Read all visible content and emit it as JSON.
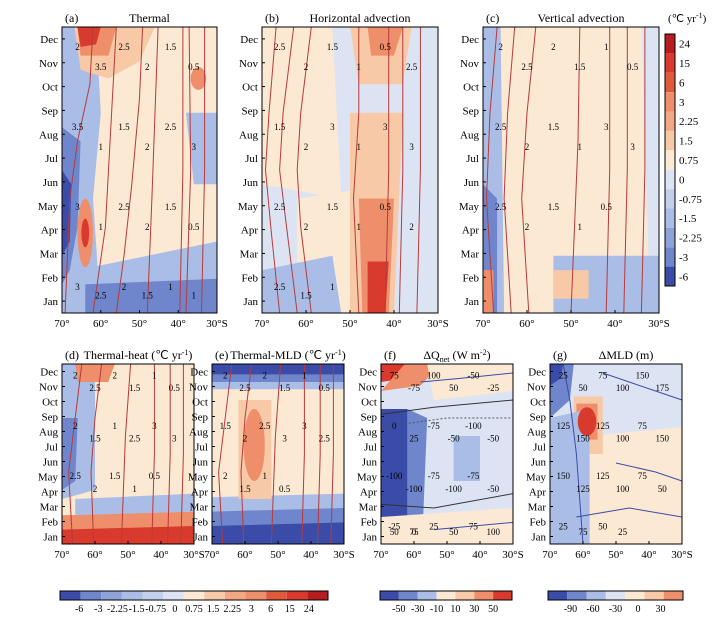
{
  "figure": {
    "month_labels": [
      "Jan",
      "Feb",
      "Mar",
      "Apr",
      "May",
      "Jun",
      "Jul",
      "Aug",
      "Sep",
      "Oct",
      "Nov",
      "Dec"
    ],
    "lat_tick_labels": [
      "70°",
      "60°",
      "50°",
      "40°",
      "30°S"
    ],
    "lat_tick_values": [
      70,
      60,
      50,
      40,
      30
    ]
  },
  "chart_data": [
    {
      "type": "heatmap",
      "panel": "(a)",
      "title": "Thermal",
      "x_range": [
        70,
        30
      ],
      "y_categories": [
        "Jan",
        "Feb",
        "Mar",
        "Apr",
        "May",
        "Jun",
        "Jul",
        "Aug",
        "Sep",
        "Oct",
        "Nov",
        "Dec"
      ],
      "contour_labels": [
        "2",
        "3.5",
        "2.5",
        "2",
        "1.5",
        "0.5",
        "3.5",
        "1",
        "1.5",
        "2",
        "2.5",
        "3",
        "3",
        "1",
        "2.5",
        "2",
        "1.5",
        "0.5",
        "3",
        "2.5",
        "2",
        "1.5",
        "1",
        "1"
      ]
    },
    {
      "type": "heatmap",
      "panel": "(b)",
      "title": "Horizontal advection",
      "x_range": [
        70,
        30
      ],
      "y_categories": [
        "Jan",
        "Feb",
        "Mar",
        "Apr",
        "May",
        "Jun",
        "Jul",
        "Aug",
        "Sep",
        "Oct",
        "Nov",
        "Dec"
      ],
      "contour_labels": [
        "2.5",
        "2",
        "1.5",
        "1",
        "0.5",
        "2.5",
        "1.5",
        "2",
        "3",
        "1",
        "3",
        "3",
        "2.5",
        "2",
        "1.5",
        "1",
        "0.5",
        "2",
        "2.5",
        "1.5",
        "1"
      ]
    },
    {
      "type": "heatmap",
      "panel": "(c)",
      "title": "Vertical advection",
      "x_range": [
        70,
        30
      ],
      "y_categories": [
        "Jan",
        "Feb",
        "Mar",
        "Apr",
        "May",
        "Jun",
        "Jul",
        "Aug",
        "Sep",
        "Oct",
        "Nov",
        "Dec"
      ],
      "contour_labels": [
        "2",
        "2.5",
        "2",
        "1.5",
        "1",
        "0.5",
        "2.5",
        "2",
        "1.5",
        "1",
        "3",
        "3",
        "2.5",
        "2",
        "1.5",
        "1",
        "0.5"
      ]
    },
    {
      "type": "heatmap",
      "panel": "(d)",
      "title": "Thermal-heat (℃ yr",
      "x_range": [
        70,
        30
      ],
      "y_categories": [
        "Jan",
        "Feb",
        "Mar",
        "Apr",
        "May",
        "Jun",
        "Jul",
        "Aug",
        "Sep",
        "Oct",
        "Nov",
        "Dec"
      ],
      "contour_labels": [
        "2",
        "2.5",
        "2",
        "1.5",
        "1",
        "0.5",
        "2",
        "1.5",
        "1",
        "2.5",
        "3",
        "3",
        "2.5",
        "2",
        "1.5",
        "1",
        "0.5"
      ]
    },
    {
      "type": "heatmap",
      "panel": "(e)",
      "title": "Thermal-MLD (℃ yr",
      "x_range": [
        70,
        30
      ],
      "y_categories": [
        "Jan",
        "Feb",
        "Mar",
        "Apr",
        "May",
        "Jun",
        "Jul",
        "Aug",
        "Sep",
        "Oct",
        "Nov",
        "Dec"
      ],
      "contour_labels": [
        "2",
        "2.5",
        "2",
        "1.5",
        "1",
        "0.5",
        "1.5",
        "2",
        "2.5",
        "3",
        "3",
        "2.5",
        "2",
        "1.5",
        "1",
        "0.5"
      ]
    },
    {
      "type": "heatmap",
      "panel": "(f)",
      "title": "ΔQ",
      "x_range": [
        70,
        30
      ],
      "y_categories": [
        "Jan",
        "Feb",
        "Mar",
        "Apr",
        "May",
        "Jun",
        "Jul",
        "Aug",
        "Sep",
        "Oct",
        "Nov",
        "Dec"
      ],
      "contour_labels": [
        "75",
        "-75",
        "100",
        "50",
        "-50",
        "-25",
        "0",
        "25",
        "-75",
        "-50",
        "-100",
        "-50",
        "-100",
        "-100",
        "-75",
        "-100",
        "-75",
        "-50",
        "-25",
        "0",
        "25",
        "50",
        "75",
        "100",
        "50",
        "75"
      ]
    },
    {
      "type": "heatmap",
      "panel": "(g)",
      "title": "ΔMLD (m)",
      "x_range": [
        70,
        30
      ],
      "y_categories": [
        "Jan",
        "Feb",
        "Mar",
        "Apr",
        "May",
        "Jun",
        "Jul",
        "Aug",
        "Sep",
        "Oct",
        "Nov",
        "Dec"
      ],
      "contour_labels": [
        "25",
        "50",
        "75",
        "100",
        "150",
        "175",
        "125",
        "150",
        "125",
        "100",
        "75",
        "150",
        "150",
        "125",
        "125",
        "100",
        "75",
        "50",
        "25",
        "75",
        "50",
        "25"
      ]
    }
  ],
  "colorbars": {
    "right": {
      "unit": "(℃ yr",
      "ticks": [
        "24",
        "15",
        "6",
        "3",
        "2.25",
        "1.5",
        "0.75",
        "0",
        "-0.75",
        "-1.5",
        "-2.25",
        "-3",
        "-6"
      ]
    },
    "bottom_main": {
      "ticks": [
        "-6",
        "-3",
        "-2.25",
        "-1.5",
        "-0.75",
        "0",
        "0.75",
        "1.5",
        "2.25",
        "3",
        "6",
        "15",
        "24"
      ]
    },
    "bottom_flux": {
      "ticks": [
        "-50",
        "-30",
        "-10",
        "10",
        "30",
        "50"
      ]
    },
    "bottom_mld": {
      "ticks": [
        "-90",
        "-60",
        "-30",
        "0",
        "30"
      ]
    }
  },
  "labels": {
    "a": "(a)",
    "b": "(b)",
    "c": "(c)",
    "d": "(d)",
    "e": "(e)",
    "f": "(f)",
    "g": "(g)",
    "title_a": "Thermal",
    "title_b": "Horizontal advection",
    "title_c": "Vertical advection",
    "title_d": "Thermal-heat (℃ yr",
    "title_e": "Thermal-MLD (℃ yr",
    "title_f": "ΔQ",
    "title_f_sub": "net",
    "title_f_unit": " (W m",
    "title_g": "ΔMLD (m)",
    "sup_minus1": "-1",
    "sup_minus2": "-2",
    "close_paren": ")"
  },
  "colors": {
    "bluedeep": "#3a4ca8",
    "blue": "#6f86cc",
    "bluelight": "#aabde6",
    "bluepale": "#dce4f4",
    "cream": "#fbe9d4",
    "peach": "#f7c9a6",
    "orange": "#ef8e6a",
    "red": "#d93a2e",
    "redDeep": "#b51d1f",
    "contour": "#b83a3a"
  }
}
